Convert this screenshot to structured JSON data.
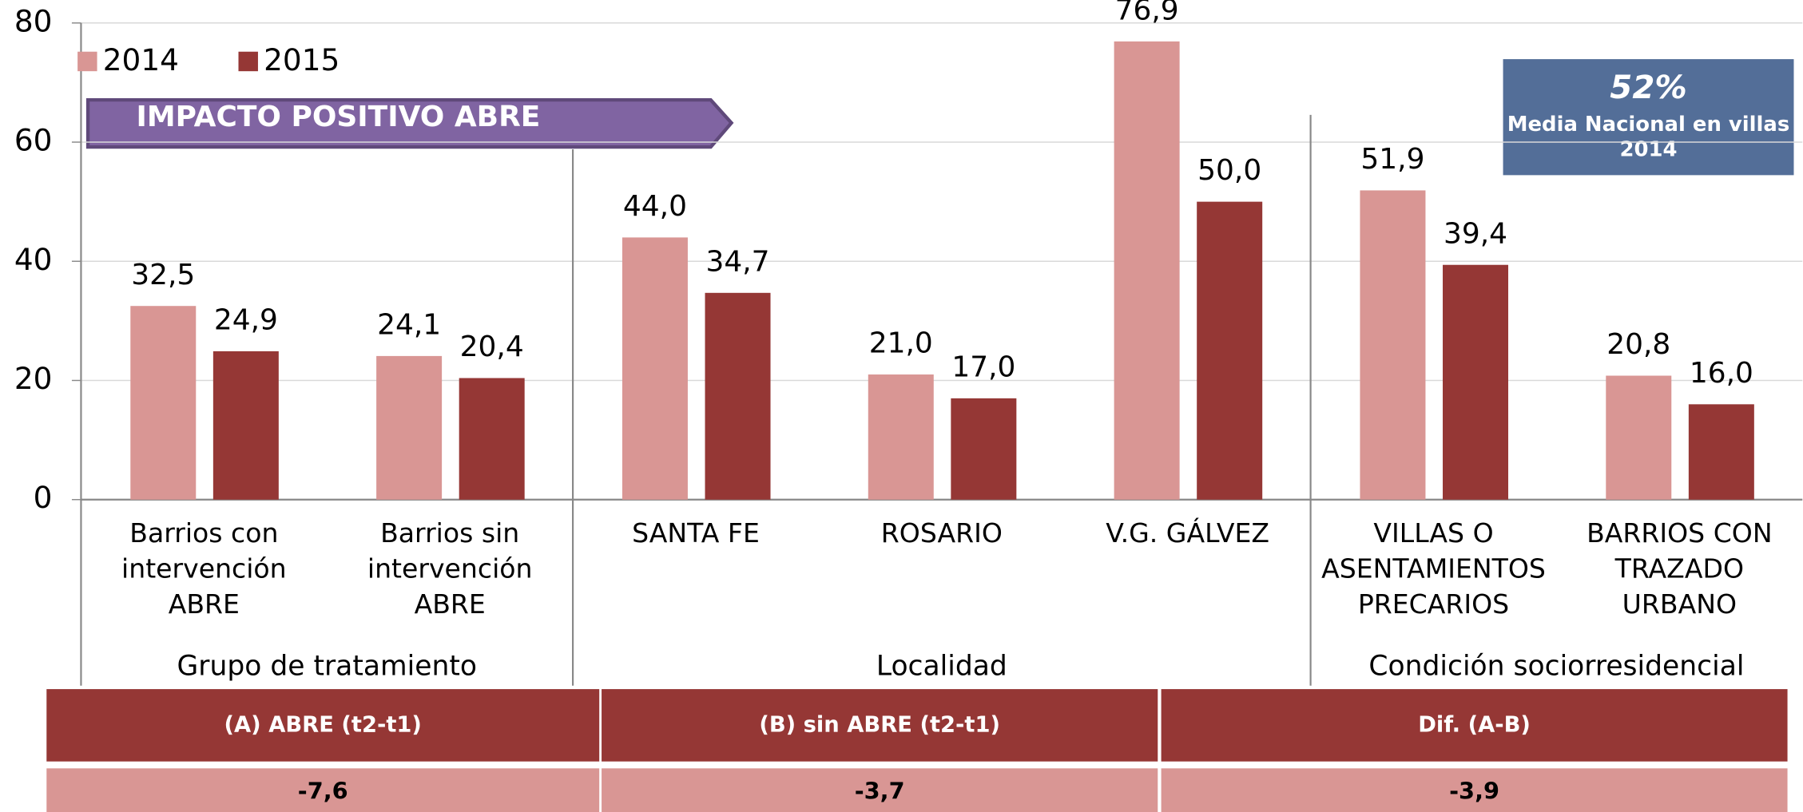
{
  "chart_data": {
    "type": "bar",
    "categories": [
      "Barrios con intervención ABRE",
      "Barrios sin intervención ABRE",
      "SANTA FE",
      "ROSARIO",
      "V.G. GÁLVEZ",
      "VILLAS O ASENTAMIENTOS PRECARIOS",
      "BARRIOS CON TRAZADO URBANO"
    ],
    "groups": [
      "Grupo de tratamiento",
      "Localidad",
      "Condición sociorresidencial"
    ],
    "series": [
      {
        "name": "2014",
        "color": "#d99694",
        "values": [
          32.5,
          24.1,
          44.0,
          21.0,
          76.9,
          51.9,
          20.8
        ],
        "value_labels": [
          "32,5",
          "24,1",
          "44,0",
          "21,0",
          "76,9",
          "51,9",
          "20,8"
        ]
      },
      {
        "name": "2015",
        "color": "#953735",
        "values": [
          24.9,
          20.4,
          34.7,
          17.0,
          50.0,
          39.4,
          16.0
        ],
        "value_labels": [
          "24,9",
          "20,4",
          "34,7",
          "17,0",
          "50,0",
          "39,4",
          "16,0"
        ]
      }
    ],
    "ylim": [
      0,
      80
    ],
    "yticks": [
      0,
      20,
      40,
      60,
      80
    ],
    "grid": true,
    "legend": "top-left",
    "annotations": {
      "banner": "IMPACTO  POSITIVO ABRE",
      "box_value": "52%",
      "box_text": "Media Nacional  en villas 2014"
    }
  },
  "table": {
    "header": [
      "(A)   ABRE (t2-t1)",
      "(B) sin ABRE (t2-t1)",
      "Dif.  (A-B)"
    ],
    "rows": [
      [
        "-7,6",
        "-3,7",
        "-3,9"
      ]
    ]
  }
}
